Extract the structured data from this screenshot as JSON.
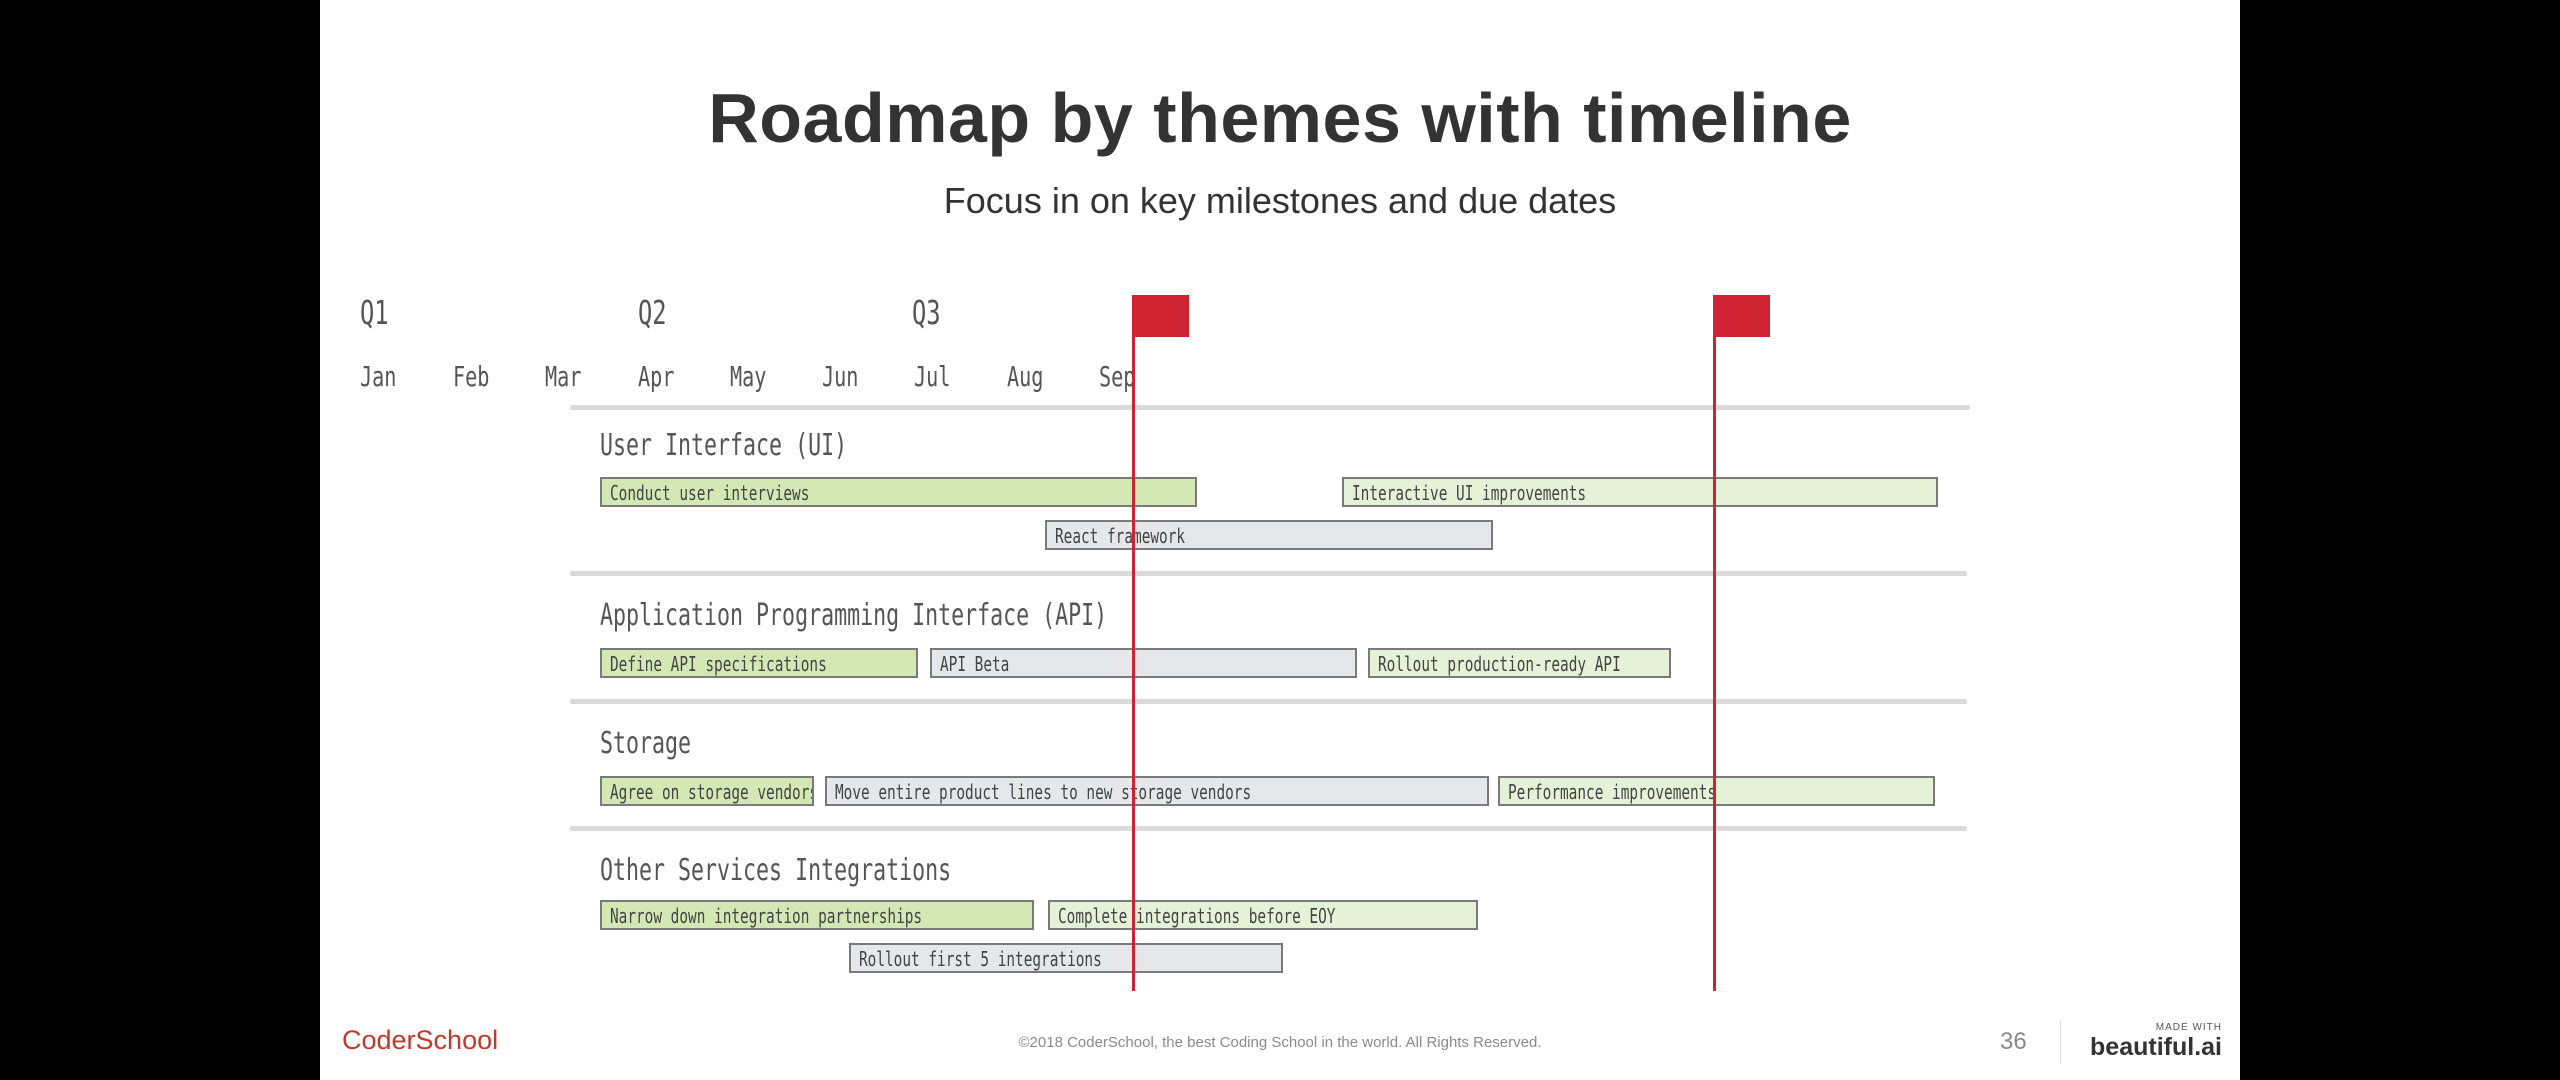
{
  "slide": {
    "title": "Roadmap by themes with timeline",
    "subtitle": "Focus in on key milestones and due dates"
  },
  "timeline": {
    "quarters": [
      "Q1",
      "Q2",
      "Q3"
    ],
    "months": [
      "Jan",
      "Feb",
      "Mar",
      "Apr",
      "May",
      "Jun",
      "Jul",
      "Aug",
      "Sep"
    ],
    "milestone_color": "#cf2232",
    "milestones": [
      {
        "position": "Apr-May boundary"
      },
      {
        "position": "Aug-Sep boundary"
      }
    ]
  },
  "themes": [
    {
      "name": "User Interface (UI)",
      "tasks": [
        {
          "label": "Conduct user interviews",
          "status": "green"
        },
        {
          "label": "Interactive UI improvements",
          "status": "lightgreen"
        },
        {
          "label": "React framework",
          "status": "gray"
        }
      ]
    },
    {
      "name": "Application Programming Interface (API)",
      "tasks": [
        {
          "label": "Define API specifications",
          "status": "green"
        },
        {
          "label": "API Beta",
          "status": "gray"
        },
        {
          "label": "Rollout production-ready API",
          "status": "lightgreen"
        }
      ]
    },
    {
      "name": "Storage",
      "tasks": [
        {
          "label": "Agree on storage vendors",
          "status": "green"
        },
        {
          "label": "Move entire product lines to new storage vendors",
          "status": "gray"
        },
        {
          "label": "Performance improvements",
          "status": "lightgreen"
        }
      ]
    },
    {
      "name": "Other Services Integrations",
      "tasks": [
        {
          "label": "Narrow down integration partnerships",
          "status": "green"
        },
        {
          "label": "Complete integrations before EOY",
          "status": "lightgreen"
        },
        {
          "label": "Rollout first 5 integrations",
          "status": "gray"
        }
      ]
    }
  ],
  "colors": {
    "green": "#d3e8b5",
    "lightgreen": "#e6f2d7",
    "gray": "#e6e7ea",
    "brand_red": "#c0392b"
  },
  "footer": {
    "logo": "CoderSchool",
    "copyright": "©2018 CoderSchool, the best Coding School in the world. All Rights Reserved.",
    "page_number": "36",
    "made_with": "MADE WITH",
    "brand": "beautiful.ai"
  }
}
